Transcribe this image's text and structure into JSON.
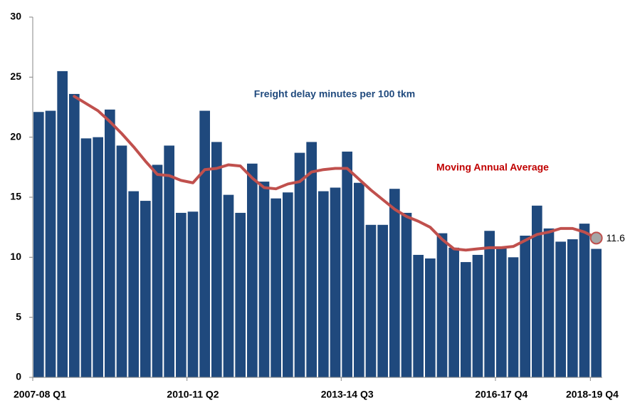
{
  "chart_data": {
    "type": "bar",
    "categories": [
      "2007-08 Q1",
      null,
      null,
      null,
      null,
      null,
      null,
      null,
      null,
      null,
      null,
      null,
      null,
      "2010-11 Q2",
      null,
      null,
      null,
      null,
      null,
      null,
      null,
      null,
      null,
      null,
      null,
      null,
      "2013-14 Q3",
      null,
      null,
      null,
      null,
      null,
      null,
      null,
      null,
      null,
      null,
      null,
      null,
      "2016-17 Q4",
      null,
      null,
      null,
      null,
      null,
      null,
      null,
      "2018-19 Q4"
    ],
    "series": [
      {
        "name": "Freight delay minutes per 100 tkm",
        "type": "bar",
        "color": "#1f497d",
        "values": [
          22.1,
          22.2,
          25.5,
          23.6,
          19.9,
          20.0,
          22.3,
          19.3,
          15.5,
          14.7,
          17.7,
          19.3,
          13.7,
          13.8,
          22.2,
          19.6,
          15.2,
          13.7,
          17.8,
          16.3,
          14.9,
          15.4,
          18.7,
          19.6,
          15.5,
          15.8,
          18.8,
          16.2,
          12.7,
          12.7,
          15.7,
          13.7,
          10.2,
          9.9,
          12.0,
          10.8,
          9.6,
          10.2,
          12.2,
          10.8,
          10.0,
          11.8,
          14.3,
          12.4,
          11.3,
          11.5,
          12.8,
          10.7
        ]
      },
      {
        "name": "Moving Annual Average",
        "type": "line",
        "color": "#c0504d",
        "values": [
          null,
          null,
          null,
          23.4,
          22.8,
          22.2,
          21.3,
          20.3,
          19.2,
          18.0,
          16.9,
          16.8,
          16.4,
          16.2,
          17.3,
          17.4,
          17.7,
          17.6,
          16.6,
          15.8,
          15.7,
          16.1,
          16.3,
          17.1,
          17.3,
          17.4,
          17.4,
          16.5,
          15.6,
          14.8,
          14.0,
          13.4,
          13.0,
          12.5,
          11.5,
          10.7,
          10.6,
          10.7,
          10.8,
          10.8,
          10.9,
          11.4,
          11.9,
          12.1,
          12.4,
          12.4,
          12.1,
          11.6
        ]
      }
    ],
    "ylim": [
      0,
      30
    ],
    "yticks": [
      0,
      5,
      10,
      15,
      20,
      25,
      30
    ],
    "grid": false
  }
}
